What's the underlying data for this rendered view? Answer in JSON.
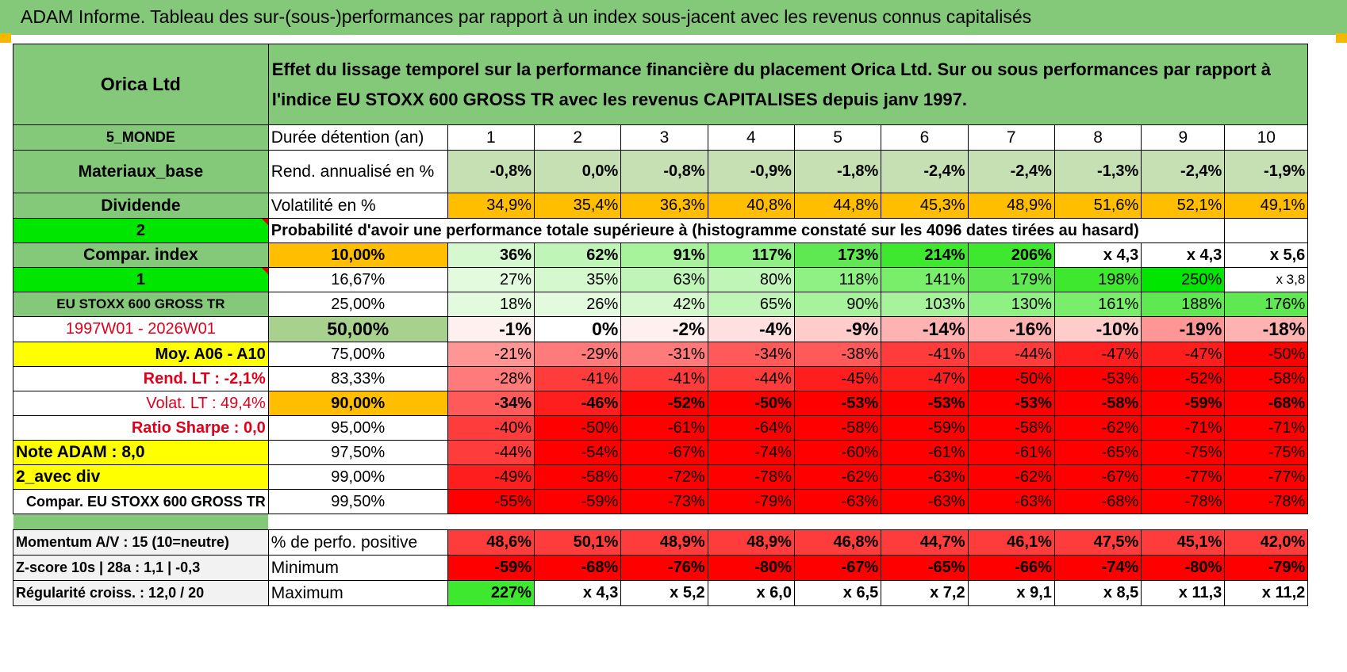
{
  "title": "ADAM Informe. Tableau des sur-(sous-)performances par rapport à un index sous-jacent avec les revenus connus capitalisés",
  "company": "Orica Ltd",
  "description": "Effet du lissage temporel sur la performance financière du placement Orica Ltd. Sur ou sous performances par rapport à l'indice EU STOXX 600 GROSS TR avec les revenus CAPITALISES depuis janv 1997.",
  "left_labels": {
    "zone": "5_MONDE",
    "sector": "Materiaux_base",
    "dividend": "Dividende",
    "option1": "2",
    "compar_index": "Compar. index",
    "option2": "1",
    "index_name": "EU STOXX 600 GROSS TR",
    "period": "1997W01 - 2026W01",
    "moy": "Moy. A06 - A10",
    "rend_lt": "Rend. LT :    -2,1%",
    "volat_lt": "Volat. LT :    49,4%",
    "sharpe": "Ratio Sharpe :     0,0",
    "note": "Note ADAM : 8,0",
    "avec_div": "2_avec div",
    "compar_eu": "Compar. EU STOXX 600 GROSS TR"
  },
  "row_labels": {
    "duree": "Durée détention (an)",
    "rend": "Rend. annualisé en %",
    "vol": "Volatilité en %",
    "proba": "Probabilité d'avoir une performance totale supérieure à (histogramme constaté sur les 4096 dates tirées au hasard)"
  },
  "years": [
    "1",
    "2",
    "3",
    "4",
    "5",
    "6",
    "7",
    "8",
    "9",
    "10"
  ],
  "rendement": [
    "-0,8%",
    "0,0%",
    "-0,8%",
    "-0,9%",
    "-1,8%",
    "-2,4%",
    "-2,4%",
    "-1,3%",
    "-2,4%",
    "-1,9%"
  ],
  "volatilite": [
    "34,9%",
    "35,4%",
    "36,3%",
    "40,8%",
    "44,8%",
    "45,3%",
    "48,9%",
    "51,6%",
    "52,1%",
    "49,1%"
  ],
  "quantiles": [
    {
      "q": "10,00%",
      "values": [
        "36%",
        "62%",
        "91%",
        "117%",
        "173%",
        "214%",
        "206%",
        "x 4,3",
        "x 4,3",
        "x 5,6"
      ]
    },
    {
      "q": "16,67%",
      "values": [
        "27%",
        "35%",
        "63%",
        "80%",
        "118%",
        "141%",
        "179%",
        "198%",
        "250%",
        "x 3,8"
      ]
    },
    {
      "q": "25,00%",
      "values": [
        "18%",
        "26%",
        "42%",
        "65%",
        "90%",
        "103%",
        "130%",
        "161%",
        "188%",
        "176%"
      ]
    },
    {
      "q": "50,00%",
      "values": [
        "-1%",
        "0%",
        "-2%",
        "-4%",
        "-9%",
        "-14%",
        "-16%",
        "-10%",
        "-19%",
        "-18%"
      ]
    },
    {
      "q": "75,00%",
      "values": [
        "-21%",
        "-29%",
        "-31%",
        "-34%",
        "-38%",
        "-41%",
        "-44%",
        "-47%",
        "-47%",
        "-50%"
      ]
    },
    {
      "q": "83,33%",
      "values": [
        "-28%",
        "-41%",
        "-41%",
        "-44%",
        "-45%",
        "-47%",
        "-50%",
        "-53%",
        "-52%",
        "-58%"
      ]
    },
    {
      "q": "90,00%",
      "values": [
        "-34%",
        "-46%",
        "-52%",
        "-50%",
        "-53%",
        "-53%",
        "-53%",
        "-58%",
        "-59%",
        "-68%"
      ]
    },
    {
      "q": "95,00%",
      "values": [
        "-40%",
        "-50%",
        "-61%",
        "-64%",
        "-58%",
        "-59%",
        "-58%",
        "-62%",
        "-71%",
        "-71%"
      ]
    },
    {
      "q": "97,50%",
      "values": [
        "-44%",
        "-54%",
        "-67%",
        "-74%",
        "-60%",
        "-61%",
        "-61%",
        "-65%",
        "-75%",
        "-75%"
      ]
    },
    {
      "q": "99,00%",
      "values": [
        "-49%",
        "-58%",
        "-72%",
        "-78%",
        "-62%",
        "-63%",
        "-62%",
        "-67%",
        "-77%",
        "-77%"
      ]
    },
    {
      "q": "99,50%",
      "values": [
        "-55%",
        "-59%",
        "-73%",
        "-79%",
        "-63%",
        "-63%",
        "-63%",
        "-68%",
        "-78%",
        "-78%"
      ]
    }
  ],
  "bottom": [
    {
      "label": "Momentum A/V : 15 (10=neutre)",
      "metric": "% de perfo. positive",
      "values": [
        "48,6%",
        "50,1%",
        "48,9%",
        "48,9%",
        "46,8%",
        "44,7%",
        "46,1%",
        "47,5%",
        "45,1%",
        "42,0%"
      ]
    },
    {
      "label": "Z-score 10s | 28a : 1,1 | -0,3",
      "metric": "Minimum",
      "values": [
        "-59%",
        "-68%",
        "-76%",
        "-80%",
        "-67%",
        "-65%",
        "-66%",
        "-74%",
        "-80%",
        "-79%"
      ]
    },
    {
      "label": "Régularité croiss. : 12,0 / 20",
      "metric": "Maximum",
      "values": [
        "227%",
        "x 4,3",
        "x 5,2",
        "x 6,0",
        "x 6,5",
        "x 7,2",
        "x 9,1",
        "x 8,5",
        "x 11,3",
        "x 11,2"
      ]
    }
  ],
  "colors": {
    "header_green": "#84c97a",
    "yellow": "#ffff00",
    "orange": "#ffbe00",
    "bright_green": "#00e600",
    "red_text": "#e0001a",
    "strong_red": "#ff0000"
  }
}
